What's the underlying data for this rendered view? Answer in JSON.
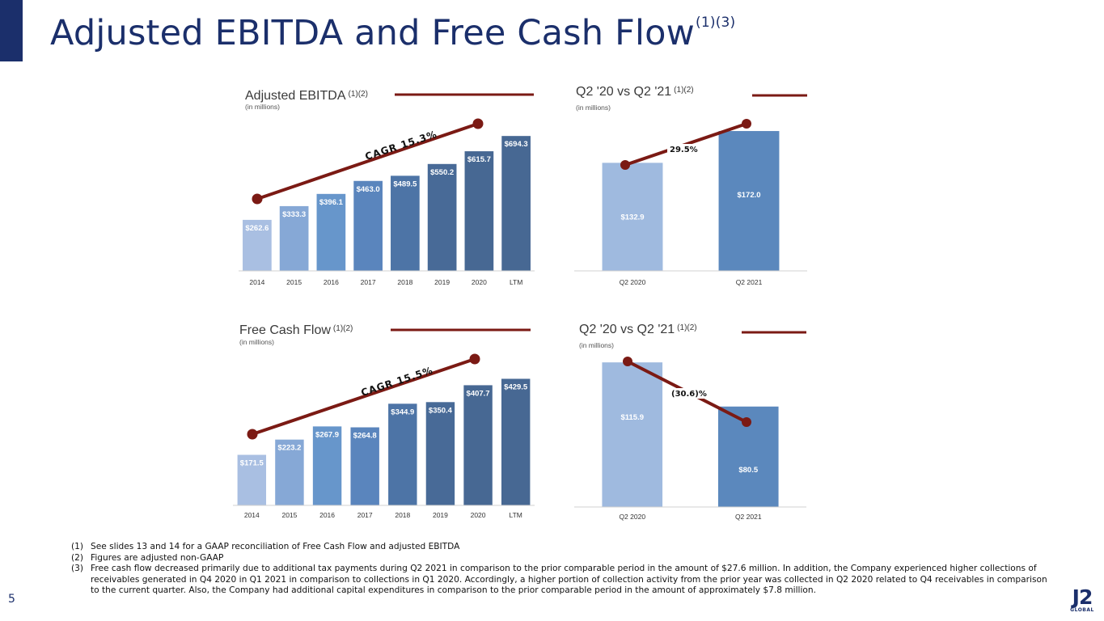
{
  "header": {
    "title": "Adjusted EBITDA and Free Cash Flow",
    "title_superscript": "(1)(3)"
  },
  "colors": {
    "navy": "#1b2f6b",
    "trend_line": "#7b1a14",
    "bar_shades": [
      "#a9bfe2",
      "#86a8d6",
      "#6796cb",
      "#5a85bd",
      "#4d74a6",
      "#486a97",
      "#476893",
      "#476893"
    ],
    "bar_q2_2020": "#9fbadf",
    "bar_q2_2021": "#5b88bd"
  },
  "chart_data": [
    {
      "type": "bar",
      "title": "Adjusted EBITDA",
      "title_superscript": "(1)(2)",
      "subtitle": "(in millions)",
      "categories": [
        "2014",
        "2015",
        "2016",
        "2017",
        "2018",
        "2019",
        "2020",
        "LTM"
      ],
      "values": [
        262.6,
        333.3,
        396.1,
        463.0,
        489.5,
        550.2,
        615.7,
        694.3
      ],
      "value_labels": [
        "$262.6",
        "$333.3",
        "$396.1",
        "$463.0",
        "$489.5",
        "$550.2",
        "$615.7",
        "$694.3"
      ],
      "annotation": "CAGR 15.3%",
      "ylim": [
        0,
        720
      ]
    },
    {
      "type": "bar",
      "title": "Q2 '20 vs Q2 '21",
      "title_superscript": "(1)(2)",
      "subtitle": "(in millions)",
      "categories": [
        "Q2 2020",
        "Q2 2021"
      ],
      "values": [
        132.9,
        172.0
      ],
      "value_labels": [
        "$132.9",
        "$172.0"
      ],
      "annotation": "29.5%",
      "ylim": [
        0,
        180
      ]
    },
    {
      "type": "bar",
      "title": "Free Cash Flow",
      "title_superscript": "(1)(2)",
      "subtitle": "(in millions)",
      "categories": [
        "2014",
        "2015",
        "2016",
        "2017",
        "2018",
        "2019",
        "2020",
        "LTM"
      ],
      "values": [
        171.5,
        223.2,
        267.9,
        264.8,
        344.9,
        350.4,
        407.7,
        429.5
      ],
      "value_labels": [
        "$171.5",
        "$223.2",
        "$267.9",
        "$264.8",
        "$344.9",
        "$350.4",
        "$407.7",
        "$429.5"
      ],
      "annotation": "CAGR 15.5%",
      "ylim": [
        0,
        450
      ]
    },
    {
      "type": "bar",
      "title": "Q2 '20 vs Q2 '21",
      "title_superscript": "(1)(2)",
      "subtitle": "(in millions)",
      "categories": [
        "Q2 2020",
        "Q2 2021"
      ],
      "values": [
        115.9,
        80.5
      ],
      "value_labels": [
        "$115.9",
        "$80.5"
      ],
      "annotation": "(30.6)%",
      "ylim": [
        0,
        116
      ]
    }
  ],
  "footnotes": [
    {
      "num": "(1)",
      "text": "See slides 13 and 14 for a GAAP reconciliation of Free Cash Flow and adjusted EBITDA"
    },
    {
      "num": "(2)",
      "text": "Figures are adjusted non-GAAP"
    },
    {
      "num": "(3)",
      "text": "Free cash flow decreased primarily due to additional tax payments during Q2 2021 in comparison to the prior comparable period in the amount of $27.6 million. In addition, the Company experienced higher collections of receivables generated in Q4 2020 in Q1 2021 in comparison to collections in Q1 2020. Accordingly, a higher portion of collection activity from the prior year was collected in Q2 2020 related to Q4 receivables in comparison to the current quarter. Also, the Company had additional capital expenditures in comparison to the prior comparable period in the amount of approximately $7.8 million."
    }
  ],
  "page_number": "5",
  "logo": {
    "main": "J2",
    "sub": "GLOBAL"
  }
}
